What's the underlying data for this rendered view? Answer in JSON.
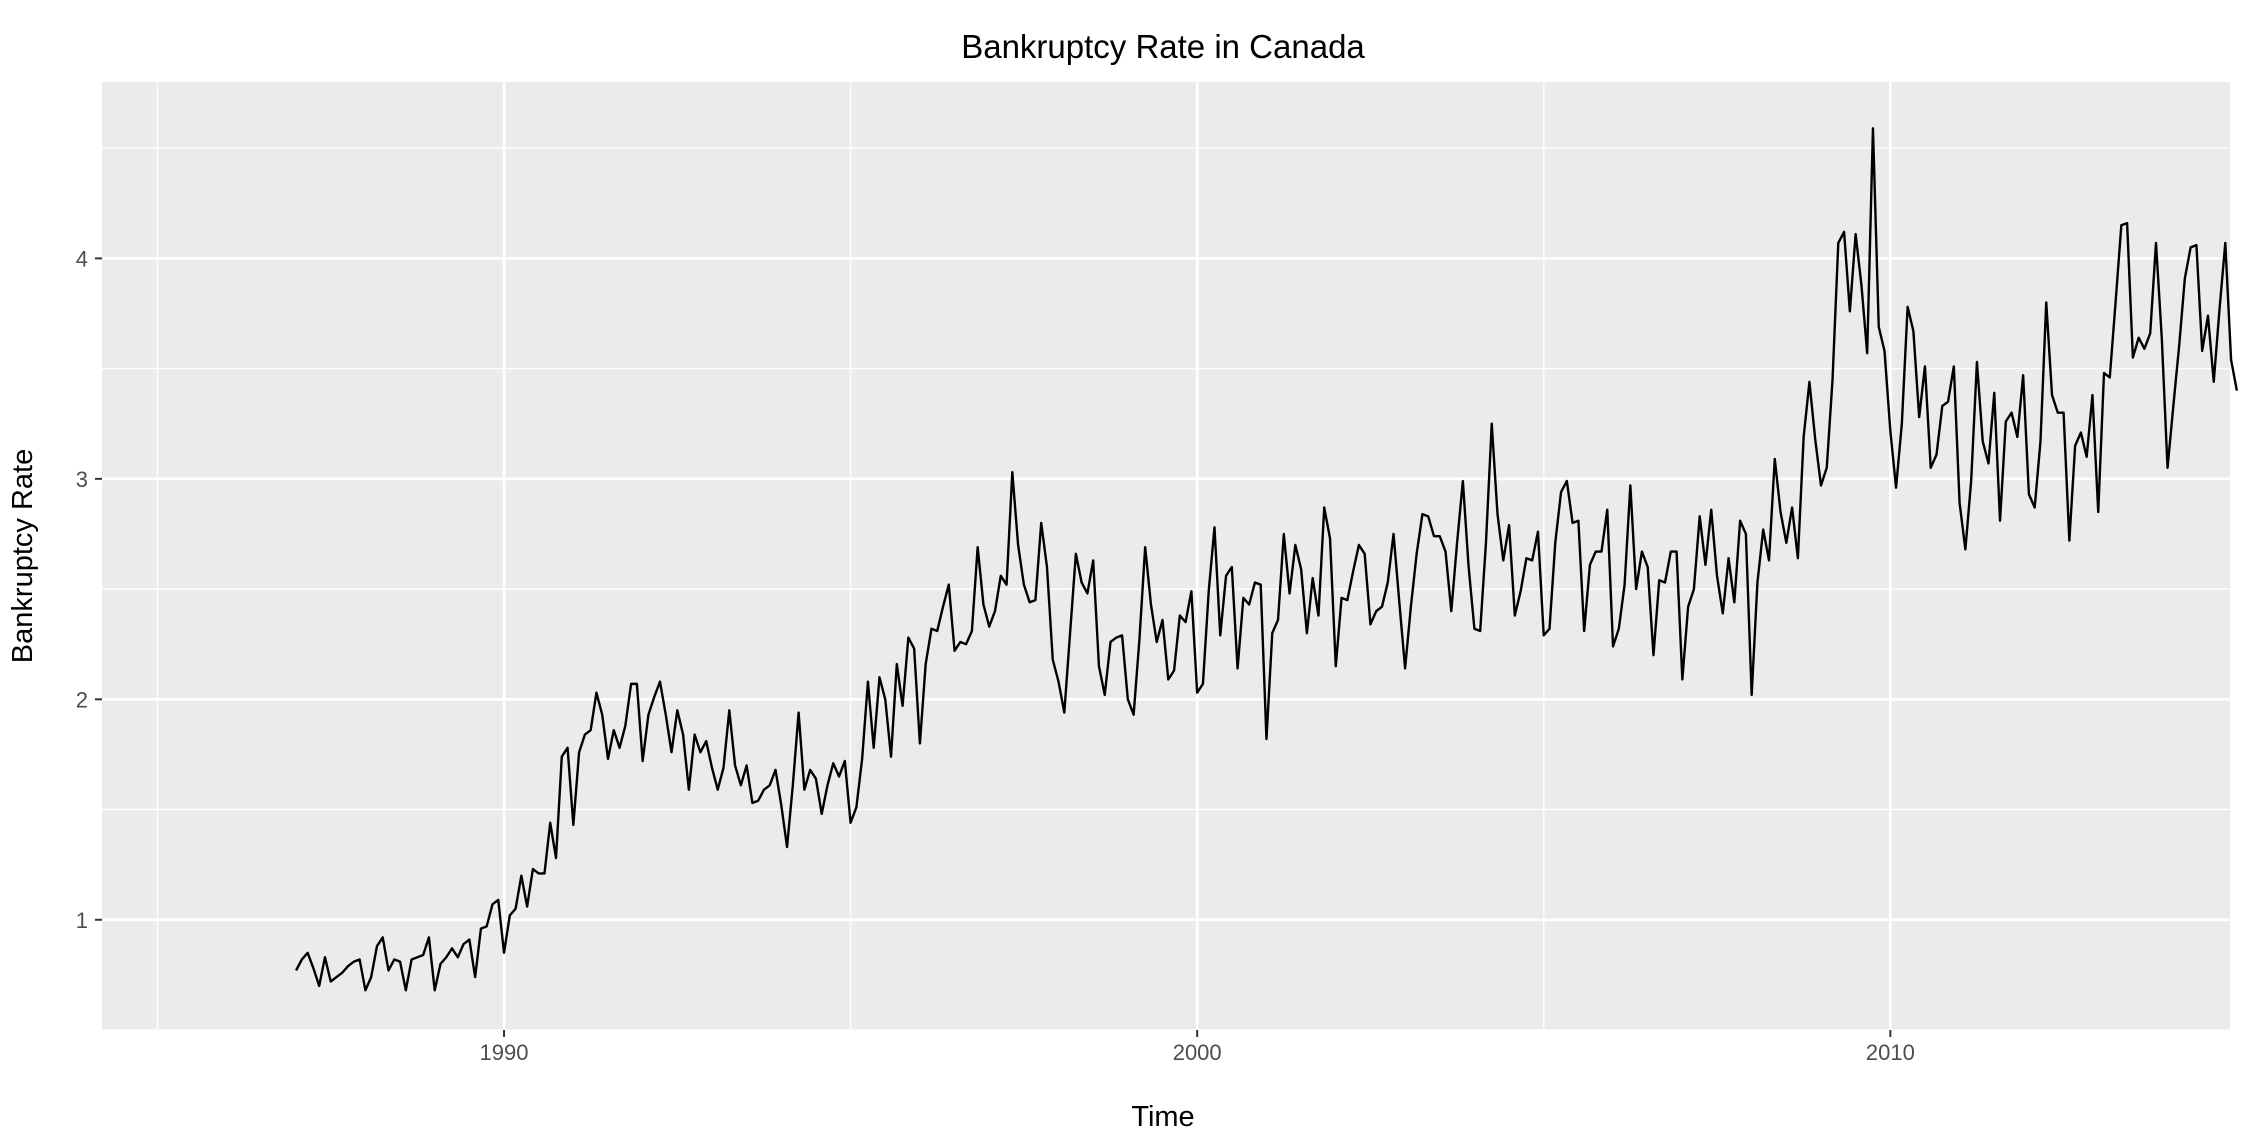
{
  "chart_data": {
    "type": "line",
    "title": "Bankruptcy Rate in Canada",
    "xlabel": "Time",
    "ylabel": "Bankruptcy Rate",
    "xlim": [
      1984.2,
      2014.9
    ],
    "ylim": [
      0.5,
      4.8
    ],
    "x_ticks": [
      1990,
      2000,
      2010
    ],
    "x_tick_labels": [
      "1990",
      "2000",
      "2010"
    ],
    "y_ticks": [
      1,
      2,
      3,
      4
    ],
    "y_tick_labels": [
      "1",
      "2",
      "3",
      "4"
    ],
    "grid": true,
    "legend": "none",
    "x_start": 1987.0,
    "x_step": 0.08333,
    "series": [
      {
        "color": "#000000",
        "values": [
          0.77,
          0.82,
          0.85,
          0.78,
          0.7,
          0.83,
          0.72,
          0.74,
          0.76,
          0.79,
          0.81,
          0.82,
          0.68,
          0.74,
          0.88,
          0.92,
          0.77,
          0.82,
          0.81,
          0.68,
          0.82,
          0.83,
          0.84,
          0.92,
          0.68,
          0.8,
          0.83,
          0.87,
          0.83,
          0.89,
          0.91,
          0.74,
          0.96,
          0.97,
          1.07,
          1.09,
          0.85,
          1.02,
          1.05,
          1.2,
          1.06,
          1.23,
          1.21,
          1.21,
          1.44,
          1.28,
          1.74,
          1.78,
          1.43,
          1.76,
          1.84,
          1.86,
          2.03,
          1.93,
          1.73,
          1.86,
          1.78,
          1.88,
          2.07,
          2.07,
          1.72,
          1.93,
          2.01,
          2.08,
          1.93,
          1.76,
          1.95,
          1.84,
          1.59,
          1.84,
          1.76,
          1.81,
          1.69,
          1.59,
          1.69,
          1.95,
          1.7,
          1.61,
          1.7,
          1.53,
          1.54,
          1.59,
          1.61,
          1.68,
          1.52,
          1.33,
          1.61,
          1.94,
          1.59,
          1.68,
          1.64,
          1.48,
          1.61,
          1.71,
          1.65,
          1.72,
          1.44,
          1.51,
          1.73,
          2.08,
          1.78,
          2.1,
          2.0,
          1.74,
          2.16,
          1.97,
          2.28,
          2.23,
          1.8,
          2.16,
          2.32,
          2.31,
          2.42,
          2.52,
          2.22,
          2.26,
          2.25,
          2.31,
          2.69,
          2.43,
          2.33,
          2.4,
          2.56,
          2.52,
          3.03,
          2.7,
          2.52,
          2.44,
          2.45,
          2.8,
          2.6,
          2.18,
          2.08,
          1.94,
          2.3,
          2.66,
          2.53,
          2.48,
          2.63,
          2.15,
          2.02,
          2.26,
          2.28,
          2.29,
          2.0,
          1.93,
          2.27,
          2.69,
          2.43,
          2.26,
          2.36,
          2.09,
          2.13,
          2.38,
          2.35,
          2.49,
          2.03,
          2.07,
          2.49,
          2.78,
          2.29,
          2.56,
          2.6,
          2.14,
          2.46,
          2.43,
          2.53,
          2.52,
          1.82,
          2.3,
          2.36,
          2.75,
          2.48,
          2.7,
          2.59,
          2.3,
          2.55,
          2.38,
          2.87,
          2.73,
          2.15,
          2.46,
          2.45,
          2.58,
          2.7,
          2.66,
          2.34,
          2.4,
          2.42,
          2.53,
          2.75,
          2.44,
          2.14,
          2.42,
          2.66,
          2.84,
          2.83,
          2.74,
          2.74,
          2.67,
          2.4,
          2.71,
          2.99,
          2.6,
          2.32,
          2.31,
          2.71,
          3.25,
          2.84,
          2.63,
          2.79,
          2.38,
          2.49,
          2.64,
          2.63,
          2.76,
          2.29,
          2.32,
          2.71,
          2.94,
          2.99,
          2.8,
          2.81,
          2.31,
          2.61,
          2.67,
          2.67,
          2.86,
          2.24,
          2.32,
          2.52,
          2.97,
          2.5,
          2.67,
          2.6,
          2.2,
          2.54,
          2.53,
          2.67,
          2.67,
          2.09,
          2.42,
          2.5,
          2.83,
          2.61,
          2.86,
          2.56,
          2.39,
          2.64,
          2.44,
          2.81,
          2.75,
          2.02,
          2.53,
          2.77,
          2.63,
          3.09,
          2.85,
          2.71,
          2.87,
          2.64,
          3.19,
          3.44,
          3.18,
          2.97,
          3.05,
          3.45,
          4.07,
          4.12,
          3.76,
          4.11,
          3.88,
          3.57,
          4.59,
          3.69,
          3.58,
          3.22,
          2.96,
          3.25,
          3.78,
          3.67,
          3.28,
          3.51,
          3.05,
          3.11,
          3.33,
          3.35,
          3.51,
          2.89,
          2.68,
          2.99,
          3.53,
          3.17,
          3.07,
          3.39,
          2.81,
          3.26,
          3.3,
          3.19,
          3.47,
          2.93,
          2.87,
          3.17,
          3.8,
          3.38,
          3.3,
          3.3,
          2.72,
          3.15,
          3.21,
          3.1,
          3.38,
          2.85,
          3.48,
          3.46,
          3.8,
          4.15,
          4.16,
          3.55,
          3.64,
          3.59,
          3.66,
          4.07,
          3.64,
          3.05,
          3.33,
          3.6,
          3.91,
          4.05,
          4.06,
          3.58,
          3.74,
          3.44,
          3.77,
          4.07,
          3.54,
          3.4
        ]
      }
    ]
  }
}
